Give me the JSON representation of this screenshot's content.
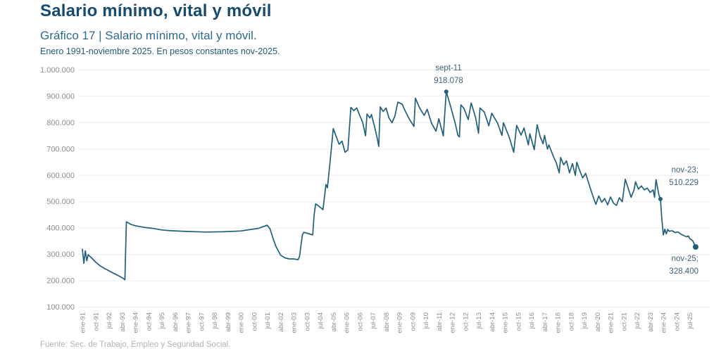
{
  "header": {
    "title": "Salario mínimo, vital y móvil",
    "subtitle": "Gráfico 17 | Salario mínimo, vital y móvil.",
    "period_note": "Enero 1991-noviembre 2025. En pesos constantes nov-2025."
  },
  "footer": {
    "source": "Fuente: Sec. de Trabajo, Empleo y Seguridad Social."
  },
  "chart_data": {
    "type": "line",
    "title": "Salario mínimo, vital y móvil",
    "ylabel": "",
    "xlabel": "",
    "ylim": [
      100000,
      1000000
    ],
    "grid": "horizontal",
    "line_color": "#20607b",
    "grid_color": "#ececec",
    "tick_label_color": "#8c8c8c",
    "y_tick_labels": [
      "1.000.000",
      "900.000",
      "800.000",
      "700.000",
      "600.000",
      "500.000",
      "400.000",
      "300.000",
      "200.000",
      "100.000"
    ],
    "x_tick_labels": [
      "ene-91",
      "oct-91",
      "jul-92",
      "abr-93",
      "ene-94",
      "oct-94",
      "jul-95",
      "abr-96",
      "ene-97",
      "oct-97",
      "jul-98",
      "abr-99",
      "ene-00",
      "oct-00",
      "jul-01",
      "abr-02",
      "ene-03",
      "oct-03",
      "jul-04",
      "abr-05",
      "ene-06",
      "oct-06",
      "jul-07",
      "abr-08",
      "ene-09",
      "oct-09",
      "jul-10",
      "abr-11",
      "ene-12",
      "oct-12",
      "jul-13",
      "abr-14",
      "ene-15",
      "oct-15",
      "jul-16",
      "abr-17",
      "ene-18",
      "oct-18",
      "jul-19",
      "abr-20",
      "ene-21",
      "oct-21",
      "jul-22",
      "abr-23",
      "ene-24",
      "oct-24",
      "jul-25"
    ],
    "x_tick_month_step": 9,
    "x_months_total": 418,
    "annotations": [
      {
        "line1": "sept-11",
        "line2": "918.078",
        "month": 248,
        "value": 918078
      },
      {
        "line1": "nov-23;",
        "line2": "510.229",
        "month": 394,
        "value": 510229
      },
      {
        "line1": "nov-25;",
        "line2": "328.400",
        "month": 418,
        "value": 328400
      }
    ],
    "series": [
      {
        "color": "#20607b",
        "points": [
          [
            0,
            320000
          ],
          [
            1,
            266000
          ],
          [
            2,
            314000
          ],
          [
            3,
            276000
          ],
          [
            4,
            299000
          ],
          [
            6,
            288000
          ],
          [
            9,
            271000
          ],
          [
            12,
            257000
          ],
          [
            15,
            247000
          ],
          [
            18,
            238000
          ],
          [
            21,
            229000
          ],
          [
            24,
            221000
          ],
          [
            27,
            212000
          ],
          [
            29,
            204000
          ],
          [
            30,
            424000
          ],
          [
            33,
            414000
          ],
          [
            36,
            409000
          ],
          [
            42,
            403000
          ],
          [
            48,
            399000
          ],
          [
            54,
            393000
          ],
          [
            60,
            390000
          ],
          [
            72,
            387000
          ],
          [
            84,
            385000
          ],
          [
            96,
            386000
          ],
          [
            108,
            389000
          ],
          [
            114,
            394000
          ],
          [
            120,
            399000
          ],
          [
            126,
            411000
          ],
          [
            128,
            396000
          ],
          [
            130,
            360000
          ],
          [
            132,
            330000
          ],
          [
            135,
            298000
          ],
          [
            138,
            287000
          ],
          [
            141,
            283000
          ],
          [
            144,
            283000
          ],
          [
            147,
            280000
          ],
          [
            148,
            292000
          ],
          [
            149,
            335000
          ],
          [
            150,
            376000
          ],
          [
            151,
            384000
          ],
          [
            154,
            379000
          ],
          [
            157,
            374000
          ],
          [
            158,
            452000
          ],
          [
            159,
            492000
          ],
          [
            161,
            484000
          ],
          [
            164,
            470000
          ],
          [
            166,
            565000
          ],
          [
            167,
            553000
          ],
          [
            169,
            660000
          ],
          [
            171,
            778000
          ],
          [
            173,
            748000
          ],
          [
            175,
            718000
          ],
          [
            177,
            730000
          ],
          [
            179,
            688000
          ],
          [
            181,
            697000
          ],
          [
            183,
            858000
          ],
          [
            185,
            846000
          ],
          [
            187,
            856000
          ],
          [
            189,
            828000
          ],
          [
            191,
            802000
          ],
          [
            193,
            750000
          ],
          [
            194,
            833000
          ],
          [
            196,
            818000
          ],
          [
            197,
            831000
          ],
          [
            199,
            788000
          ],
          [
            201,
            740000
          ],
          [
            202,
            710000
          ],
          [
            203,
            860000
          ],
          [
            205,
            843000
          ],
          [
            207,
            856000
          ],
          [
            209,
            818000
          ],
          [
            211,
            800000
          ],
          [
            213,
            825000
          ],
          [
            215,
            878000
          ],
          [
            218,
            870000
          ],
          [
            220,
            845000
          ],
          [
            223,
            812000
          ],
          [
            226,
            786000
          ],
          [
            227,
            893000
          ],
          [
            230,
            854000
          ],
          [
            233,
            828000
          ],
          [
            235,
            851000
          ],
          [
            238,
            798000
          ],
          [
            241,
            768000
          ],
          [
            243,
            815000
          ],
          [
            246,
            750000
          ],
          [
            248,
            918078
          ],
          [
            251,
            862000
          ],
          [
            254,
            800000
          ],
          [
            256,
            752000
          ],
          [
            257,
            746000
          ],
          [
            258,
            868000
          ],
          [
            260,
            855000
          ],
          [
            263,
            812000
          ],
          [
            265,
            875000
          ],
          [
            268,
            820000
          ],
          [
            270,
            760000
          ],
          [
            271,
            856000
          ],
          [
            274,
            840000
          ],
          [
            277,
            788000
          ],
          [
            279,
            836000
          ],
          [
            283,
            798000
          ],
          [
            286,
            752000
          ],
          [
            287,
            800000
          ],
          [
            291,
            744000
          ],
          [
            294,
            688000
          ],
          [
            296,
            790000
          ],
          [
            299,
            753000
          ],
          [
            301,
            780000
          ],
          [
            304,
            716000
          ],
          [
            305,
            758000
          ],
          [
            308,
            698000
          ],
          [
            310,
            792000
          ],
          [
            312,
            748000
          ],
          [
            314,
            720000
          ],
          [
            315,
            752000
          ],
          [
            317,
            700000
          ],
          [
            318,
            716000
          ],
          [
            321,
            672000
          ],
          [
            323,
            648000
          ],
          [
            325,
            610000
          ],
          [
            326,
            668000
          ],
          [
            328,
            640000
          ],
          [
            330,
            655000
          ],
          [
            332,
            610000
          ],
          [
            334,
            645000
          ],
          [
            336,
            600000
          ],
          [
            337,
            650000
          ],
          [
            339,
            618000
          ],
          [
            341,
            590000
          ],
          [
            343,
            608000
          ],
          [
            345,
            572000
          ],
          [
            347,
            538000
          ],
          [
            349,
            505000
          ],
          [
            350,
            490000
          ],
          [
            352,
            522000
          ],
          [
            354,
            498000
          ],
          [
            356,
            512000
          ],
          [
            358,
            488000
          ],
          [
            360,
            518000
          ],
          [
            362,
            495000
          ],
          [
            364,
            486000
          ],
          [
            366,
            515000
          ],
          [
            368,
            500000
          ],
          [
            370,
            585000
          ],
          [
            372,
            552000
          ],
          [
            374,
            517000
          ],
          [
            376,
            545000
          ],
          [
            377,
            576000
          ],
          [
            379,
            548000
          ],
          [
            381,
            560000
          ],
          [
            383,
            545000
          ],
          [
            385,
            552000
          ],
          [
            387,
            535000
          ],
          [
            389,
            545000
          ],
          [
            390,
            517000
          ],
          [
            391,
            584000
          ],
          [
            393,
            525000
          ],
          [
            394,
            510229
          ],
          [
            395,
            430000
          ],
          [
            396,
            374000
          ],
          [
            397,
            396000
          ],
          [
            398,
            378000
          ],
          [
            399,
            395000
          ],
          [
            400,
            388000
          ],
          [
            402,
            390000
          ],
          [
            404,
            383000
          ],
          [
            406,
            385000
          ],
          [
            408,
            377000
          ],
          [
            410,
            371000
          ],
          [
            412,
            367000
          ],
          [
            413,
            370000
          ],
          [
            414,
            360000
          ],
          [
            416,
            352000
          ],
          [
            417,
            340000
          ],
          [
            418,
            328400
          ]
        ]
      }
    ]
  }
}
